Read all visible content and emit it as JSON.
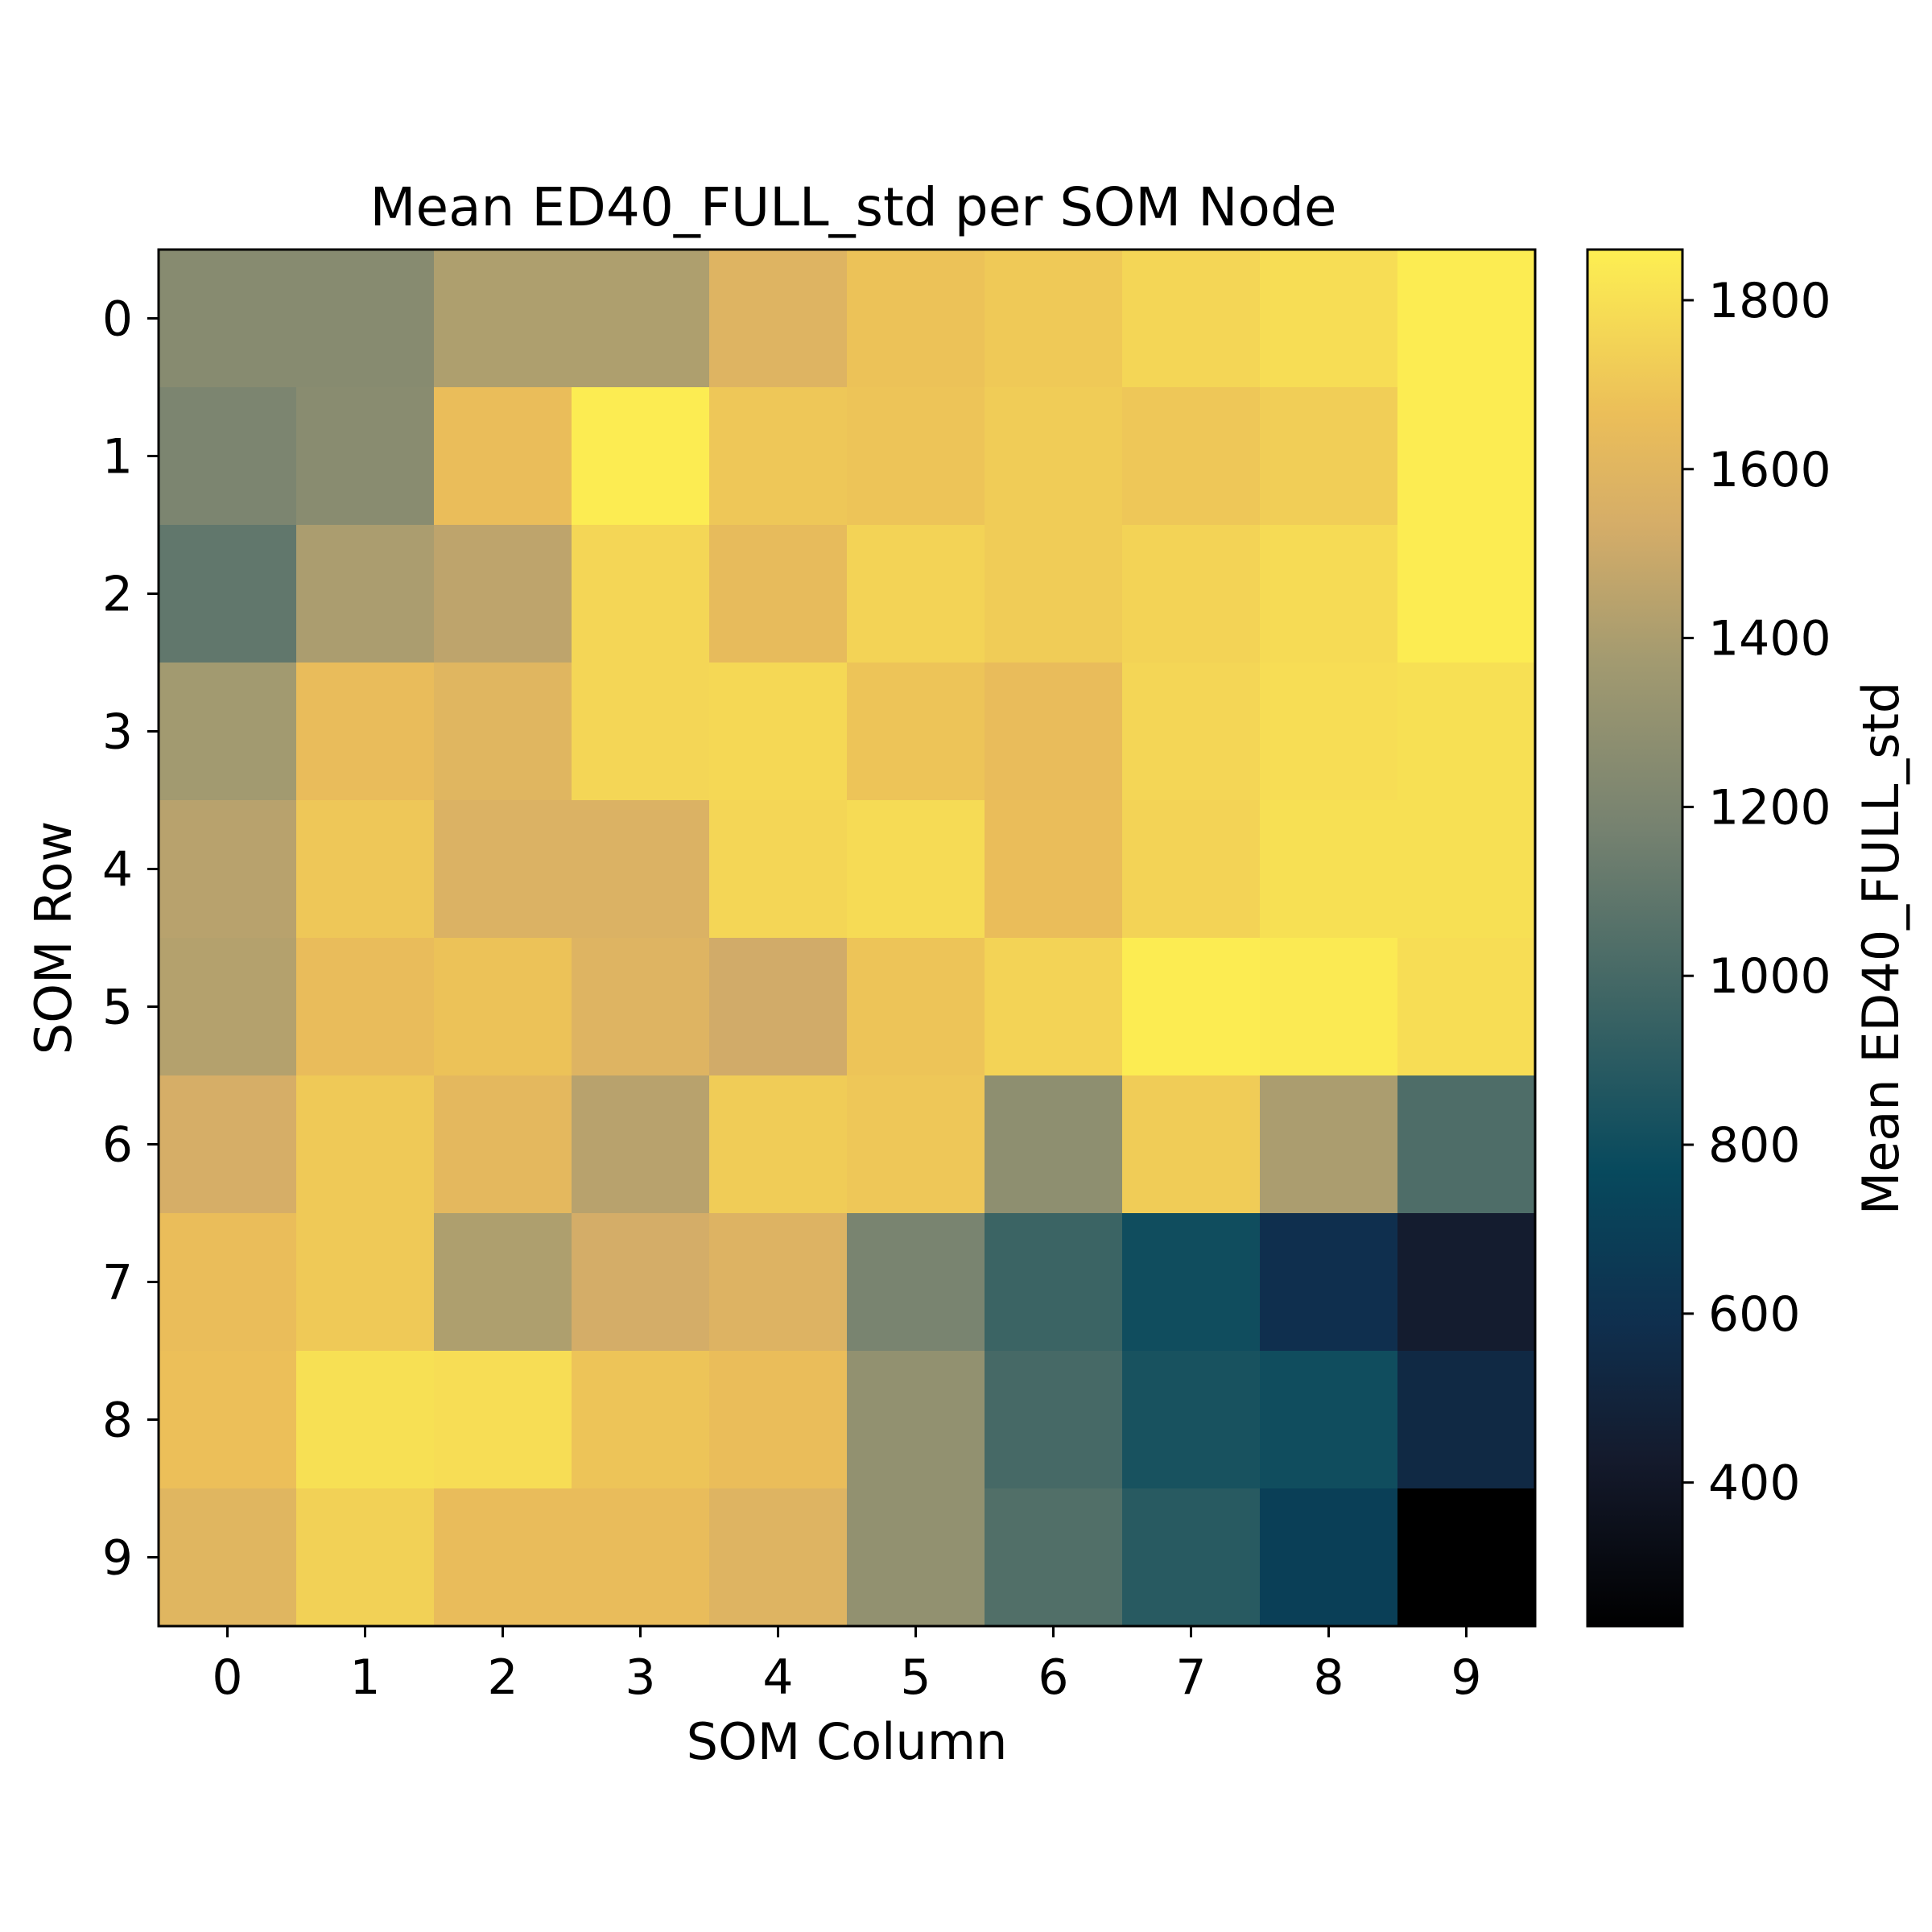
{
  "chart_data": {
    "type": "heatmap",
    "title": "Mean ED40_FULL_std per SOM Node",
    "xlabel": "SOM Column",
    "ylabel": "SOM Row",
    "colorbar_label": "Mean ED40_FULL_std",
    "x_categories": [
      "0",
      "1",
      "2",
      "3",
      "4",
      "5",
      "6",
      "7",
      "8",
      "9"
    ],
    "y_categories": [
      "0",
      "1",
      "2",
      "3",
      "4",
      "5",
      "6",
      "7",
      "8",
      "9"
    ],
    "values": [
      [
        1250,
        1250,
        1410,
        1410,
        1590,
        1680,
        1710,
        1760,
        1790,
        1850
      ],
      [
        1200,
        1260,
        1660,
        1850,
        1700,
        1690,
        1720,
        1700,
        1730,
        1850
      ],
      [
        1100,
        1400,
        1460,
        1760,
        1640,
        1750,
        1720,
        1750,
        1780,
        1850
      ],
      [
        1370,
        1650,
        1600,
        1760,
        1770,
        1690,
        1650,
        1760,
        1790,
        1800
      ],
      [
        1440,
        1700,
        1570,
        1570,
        1760,
        1780,
        1660,
        1750,
        1800,
        1800
      ],
      [
        1430,
        1650,
        1680,
        1590,
        1520,
        1690,
        1750,
        1850,
        1840,
        1790
      ],
      [
        1540,
        1710,
        1620,
        1440,
        1720,
        1700,
        1280,
        1720,
        1400,
        1030
      ],
      [
        1660,
        1710,
        1410,
        1530,
        1580,
        1190,
        960,
        800,
        590,
        440
      ],
      [
        1670,
        1800,
        1790,
        1690,
        1660,
        1300,
        1000,
        830,
        800,
        540
      ],
      [
        1600,
        1740,
        1650,
        1650,
        1590,
        1300,
        1040,
        890,
        700,
        230
      ]
    ],
    "colorbar_range": [
      230,
      1860
    ],
    "colorbar_ticks": [
      400,
      600,
      800,
      1000,
      1200,
      1400,
      1600,
      1800
    ],
    "colormap": "cividis-like",
    "colormap_stops": [
      {
        "value": 0.0,
        "color": "#000000"
      },
      {
        "value": 0.12,
        "color": "#141a2c"
      },
      {
        "value": 0.22,
        "color": "#0f2f4e"
      },
      {
        "value": 0.33,
        "color": "#07495d"
      },
      {
        "value": 0.45,
        "color": "#3c6464"
      },
      {
        "value": 0.58,
        "color": "#768270"
      },
      {
        "value": 0.7,
        "color": "#a29a70"
      },
      {
        "value": 0.8,
        "color": "#d5ad68"
      },
      {
        "value": 0.88,
        "color": "#ebbe59"
      },
      {
        "value": 1.0,
        "color": "#fdef52"
      }
    ],
    "grid": false
  }
}
